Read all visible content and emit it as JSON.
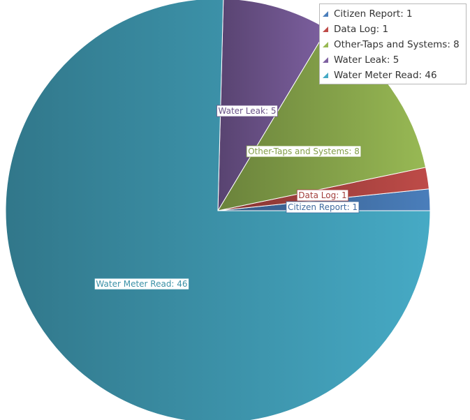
{
  "chart_data": {
    "type": "pie",
    "title": "",
    "legend_position": "top-right",
    "slices": [
      {
        "label": "Citizen Report",
        "value": 1,
        "color": "#4a7ebb",
        "display": "Citizen Report: 1"
      },
      {
        "label": "Data Log",
        "value": 1,
        "color": "#be4b48",
        "display": "Data Log: 1"
      },
      {
        "label": "Other-Taps and Systems",
        "value": 8,
        "color": "#98b954",
        "display": "Other-Taps and Systems: 8"
      },
      {
        "label": "Water Leak",
        "value": 5,
        "color": "#7d60a0",
        "display": "Water Leak: 5"
      },
      {
        "label": "Water Meter Read",
        "value": 46,
        "color": "#46aac5",
        "display": "Water Meter Read: 46"
      }
    ]
  }
}
